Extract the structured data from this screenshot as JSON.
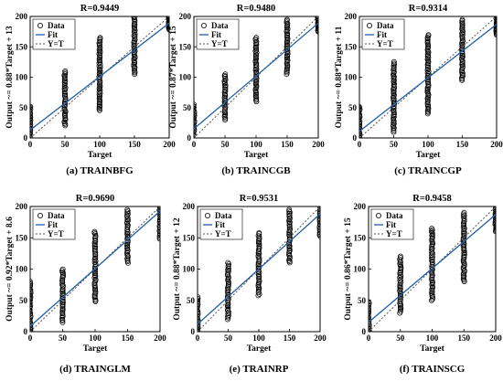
{
  "figure": {
    "panels": [
      {
        "id": "a",
        "title": "R=0.9449",
        "caption": "(a) TRAINBFG",
        "ylabel": "Output ~= 0.88*Target + 13",
        "xlabel": "Target"
      },
      {
        "id": "b",
        "title": "R=0.9480",
        "caption": "(b) TRAINCGB",
        "ylabel": "Output ~= 0.87*Target + 15",
        "xlabel": "Target"
      },
      {
        "id": "c",
        "title": "R=0.9314",
        "caption": "(c) TRAINCGP",
        "ylabel": "Output ~= 0.88*Target + 11",
        "xlabel": "Target"
      },
      {
        "id": "d",
        "title": "R=0.9690",
        "caption": "(d) TRAINGLM",
        "ylabel": "Output ~= 0.92*Target + 8.6",
        "xlabel": "Target"
      },
      {
        "id": "e",
        "title": "R=0.9531",
        "caption": "(e) TRAINRP",
        "ylabel": "Output ~= 0.88*Target + 12",
        "xlabel": "Target"
      },
      {
        "id": "f",
        "title": "R=0.9458",
        "caption": "(f) TRAINSCG",
        "ylabel": "Output ~= 0.86*Target + 15",
        "xlabel": "Target"
      }
    ],
    "legend": [
      "Data",
      "Fit",
      "Y=T"
    ]
  },
  "chart_data": [
    {
      "type": "scatter",
      "title": "R=0.9449",
      "xlabel": "Target",
      "ylabel": "Output ~= 0.88*Target + 13",
      "xlim": [
        0,
        200
      ],
      "ylim": [
        0,
        200
      ],
      "xticks": [
        0,
        50,
        100,
        150,
        200
      ],
      "yticks": [
        0,
        50,
        100,
        150,
        200
      ],
      "legend": [
        "Data",
        "Fit",
        "Y=T"
      ],
      "legend_position": "top-left",
      "fit": {
        "slope": 0.88,
        "intercept": 13
      },
      "series": [
        {
          "x": 0,
          "y_min": 2,
          "y_max": 52
        },
        {
          "x": 50,
          "y_min": 20,
          "y_max": 110
        },
        {
          "x": 100,
          "y_min": 45,
          "y_max": 165
        },
        {
          "x": 150,
          "y_min": 105,
          "y_max": 200
        },
        {
          "x": 200,
          "y_min": 178,
          "y_max": 200
        }
      ]
    },
    {
      "type": "scatter",
      "title": "R=0.9480",
      "xlabel": "Target",
      "ylabel": "Output ~= 0.87*Target + 15",
      "xlim": [
        0,
        200
      ],
      "ylim": [
        0,
        200
      ],
      "xticks": [
        0,
        50,
        100,
        150,
        200
      ],
      "yticks": [
        0,
        50,
        100,
        150,
        200
      ],
      "legend": [
        "Data",
        "Fit",
        "Y=T"
      ],
      "legend_position": "top-left",
      "fit": {
        "slope": 0.87,
        "intercept": 15
      },
      "series": [
        {
          "x": 0,
          "y_min": 5,
          "y_max": 55
        },
        {
          "x": 50,
          "y_min": 30,
          "y_max": 105
        },
        {
          "x": 100,
          "y_min": 60,
          "y_max": 165
        },
        {
          "x": 150,
          "y_min": 105,
          "y_max": 195
        },
        {
          "x": 200,
          "y_min": 175,
          "y_max": 200
        }
      ]
    },
    {
      "type": "scatter",
      "title": "R=0.9314",
      "xlabel": "Target",
      "ylabel": "Output ~= 0.88*Target + 11",
      "xlim": [
        0,
        200
      ],
      "ylim": [
        0,
        200
      ],
      "xticks": [
        0,
        50,
        100,
        150,
        200
      ],
      "yticks": [
        0,
        50,
        100,
        150,
        200
      ],
      "legend": [
        "Data",
        "Fit",
        "Y=T"
      ],
      "legend_position": "top-left",
      "fit": {
        "slope": 0.88,
        "intercept": 11
      },
      "series": [
        {
          "x": 0,
          "y_min": 0,
          "y_max": 52
        },
        {
          "x": 50,
          "y_min": 10,
          "y_max": 125
        },
        {
          "x": 100,
          "y_min": 40,
          "y_max": 170
        },
        {
          "x": 150,
          "y_min": 95,
          "y_max": 195
        },
        {
          "x": 200,
          "y_min": 170,
          "y_max": 200
        }
      ]
    },
    {
      "type": "scatter",
      "title": "R=0.9690",
      "xlabel": "Target",
      "ylabel": "Output ~= 0.92*Target + 8.6",
      "xlim": [
        0,
        200
      ],
      "ylim": [
        0,
        200
      ],
      "xticks": [
        0,
        50,
        100,
        150,
        200
      ],
      "yticks": [
        0,
        50,
        100,
        150,
        200
      ],
      "legend": [
        "Data",
        "Fit",
        "Y=T"
      ],
      "legend_position": "top-left",
      "fit": {
        "slope": 0.92,
        "intercept": 8.6
      },
      "series": [
        {
          "x": 0,
          "y_min": 0,
          "y_max": 80
        },
        {
          "x": 50,
          "y_min": 15,
          "y_max": 100
        },
        {
          "x": 100,
          "y_min": 48,
          "y_max": 160
        },
        {
          "x": 150,
          "y_min": 110,
          "y_max": 195
        },
        {
          "x": 200,
          "y_min": 148,
          "y_max": 200
        }
      ]
    },
    {
      "type": "scatter",
      "title": "R=0.9531",
      "xlabel": "Target",
      "ylabel": "Output ~= 0.88*Target + 12",
      "xlim": [
        0,
        200
      ],
      "ylim": [
        0,
        200
      ],
      "xticks": [
        0,
        50,
        100,
        150,
        200
      ],
      "yticks": [
        0,
        50,
        100,
        150,
        200
      ],
      "legend": [
        "Data",
        "Fit",
        "Y=T"
      ],
      "legend_position": "top-left",
      "fit": {
        "slope": 0.88,
        "intercept": 12
      },
      "series": [
        {
          "x": 0,
          "y_min": 0,
          "y_max": 55
        },
        {
          "x": 50,
          "y_min": 20,
          "y_max": 110
        },
        {
          "x": 100,
          "y_min": 58,
          "y_max": 158
        },
        {
          "x": 150,
          "y_min": 110,
          "y_max": 195
        },
        {
          "x": 200,
          "y_min": 152,
          "y_max": 200
        }
      ]
    },
    {
      "type": "scatter",
      "title": "R=0.9458",
      "xlabel": "Target",
      "ylabel": "Output ~= 0.86*Target + 15",
      "xlim": [
        0,
        200
      ],
      "ylim": [
        0,
        200
      ],
      "xticks": [
        0,
        50,
        100,
        150,
        200
      ],
      "yticks": [
        0,
        50,
        100,
        150,
        200
      ],
      "legend": [
        "Data",
        "Fit",
        "Y=T"
      ],
      "legend_position": "top-left",
      "fit": {
        "slope": 0.86,
        "intercept": 15
      },
      "series": [
        {
          "x": 0,
          "y_min": 0,
          "y_max": 48
        },
        {
          "x": 50,
          "y_min": 30,
          "y_max": 120
        },
        {
          "x": 100,
          "y_min": 50,
          "y_max": 165
        },
        {
          "x": 150,
          "y_min": 80,
          "y_max": 190
        },
        {
          "x": 200,
          "y_min": 160,
          "y_max": 200
        }
      ]
    }
  ]
}
